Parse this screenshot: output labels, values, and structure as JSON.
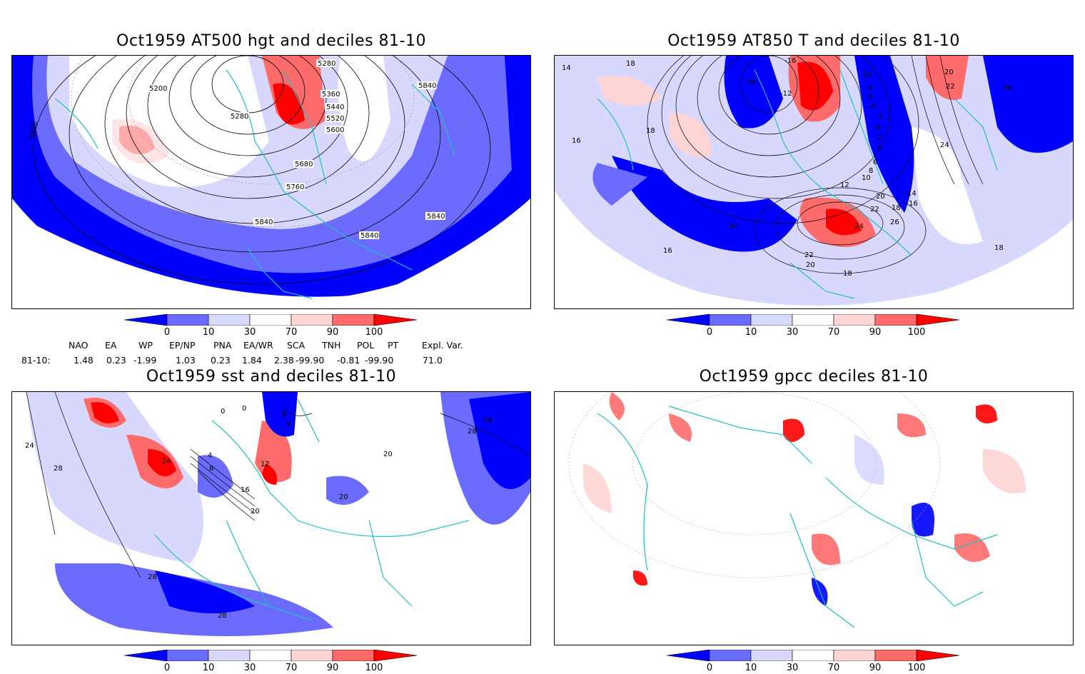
{
  "panels": [
    {
      "title": "Oct1959 AT500 hgt and deciles 81-10",
      "contour_labels": [
        "5280",
        "5200",
        "5280",
        "5360",
        "5440",
        "5520",
        "5600",
        "5680",
        "5760",
        "5840",
        "5840",
        "5840",
        "5840",
        "5840"
      ]
    },
    {
      "title": "Oct1959 AT850 T and deciles 81-10",
      "contour_labels": [
        "14",
        "18",
        "18",
        "16",
        "-16",
        "-18",
        "-12",
        "-10",
        "-8",
        "-6",
        "-4",
        "-2",
        "0",
        "2",
        "4",
        "6",
        "8",
        "10",
        "12",
        "14",
        "16",
        "18",
        "20",
        "22",
        "24",
        "26",
        "22",
        "20",
        "18",
        "18",
        "16",
        "14",
        "16",
        "20",
        "22",
        "24"
      ]
    },
    {
      "title": "Oct1959 sst and deciles 81-10",
      "contour_labels": [
        "0",
        "0",
        "8",
        "4",
        "4",
        "12",
        "8",
        "16",
        "20",
        "20",
        "24",
        "20",
        "28",
        "24",
        "28",
        "28",
        "28",
        "28"
      ]
    },
    {
      "title": "Oct1959 gpcc deciles 81-10",
      "contour_labels": []
    }
  ],
  "colorbar": {
    "labels": [
      "0",
      "10",
      "30",
      "70",
      "90",
      "100"
    ],
    "colors": [
      "#0000ff",
      "#6b6bff",
      "#d8d8ff",
      "#ffffff",
      "#ffd4d4",
      "#ff6b6b",
      "#ff0000"
    ]
  },
  "indices": {
    "headers": [
      "NAO",
      "EA",
      "WP",
      "EP/NP",
      "PNA",
      "EA/WR",
      "SCA",
      "TNH",
      "POL",
      "PT",
      "Expl. Var."
    ],
    "row_label": "81-10:",
    "values": [
      "1.48",
      "0.23",
      "-1.99",
      "1.03",
      "0.23",
      "1.84",
      "2.38",
      "-99.90",
      "-0.81",
      "-99.90",
      "71.0"
    ]
  }
}
